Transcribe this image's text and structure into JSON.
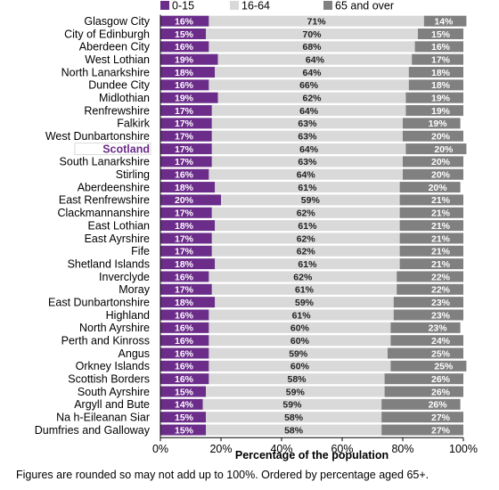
{
  "chart_data": {
    "type": "bar",
    "orientation": "horizontal",
    "stacked": true,
    "categories": [
      "Glasgow City",
      "City of Edinburgh",
      "Aberdeen City",
      "West Lothian",
      "North Lanarkshire",
      "Dundee City",
      "Midlothian",
      "Renfrewshire",
      "Falkirk",
      "West Dunbartonshire",
      "Scotland",
      "South Lanarkshire",
      "Stirling",
      "Aberdeenshire",
      "East Renfrewshire",
      "Clackmannanshire",
      "East Lothian",
      "East Ayrshire",
      "Fife",
      "Shetland Islands",
      "Inverclyde",
      "Moray",
      "East Dunbartonshire",
      "Highland",
      "North Ayrshire",
      "Perth and Kinross",
      "Angus",
      "Orkney Islands",
      "Scottish Borders",
      "South Ayrshire",
      "Argyll and Bute",
      "Na h-Eileanan Siar",
      "Dumfries and Galloway"
    ],
    "highlight": "Scotland",
    "series": [
      {
        "name": "0-15",
        "color": "#6b2c8a",
        "values": [
          16,
          15,
          16,
          19,
          18,
          16,
          19,
          17,
          17,
          17,
          17,
          17,
          16,
          18,
          20,
          17,
          18,
          17,
          17,
          18,
          16,
          17,
          18,
          16,
          16,
          16,
          16,
          16,
          16,
          15,
          14,
          15,
          15
        ]
      },
      {
        "name": "16-64",
        "color": "#d9d9d9",
        "values": [
          71,
          70,
          68,
          64,
          64,
          66,
          62,
          64,
          63,
          63,
          64,
          63,
          64,
          61,
          59,
          62,
          61,
          62,
          62,
          61,
          62,
          61,
          59,
          61,
          60,
          60,
          59,
          60,
          58,
          59,
          59,
          58,
          58
        ]
      },
      {
        "name": "65 and over",
        "color": "#808080",
        "values": [
          14,
          15,
          16,
          17,
          18,
          18,
          19,
          19,
          19,
          20,
          20,
          20,
          20,
          20,
          21,
          21,
          21,
          21,
          21,
          21,
          22,
          22,
          23,
          23,
          23,
          24,
          25,
          25,
          26,
          26,
          26,
          27,
          27
        ]
      }
    ],
    "xlabel": "Percentage of the population",
    "xlim": [
      0,
      100
    ],
    "xticks": [
      "0%",
      "20%",
      "40%",
      "60%",
      "80%",
      "100%"
    ],
    "legend_position": "top",
    "note": "Figures are rounded so may not add up to 100%. Ordered by percentage aged 65+."
  }
}
